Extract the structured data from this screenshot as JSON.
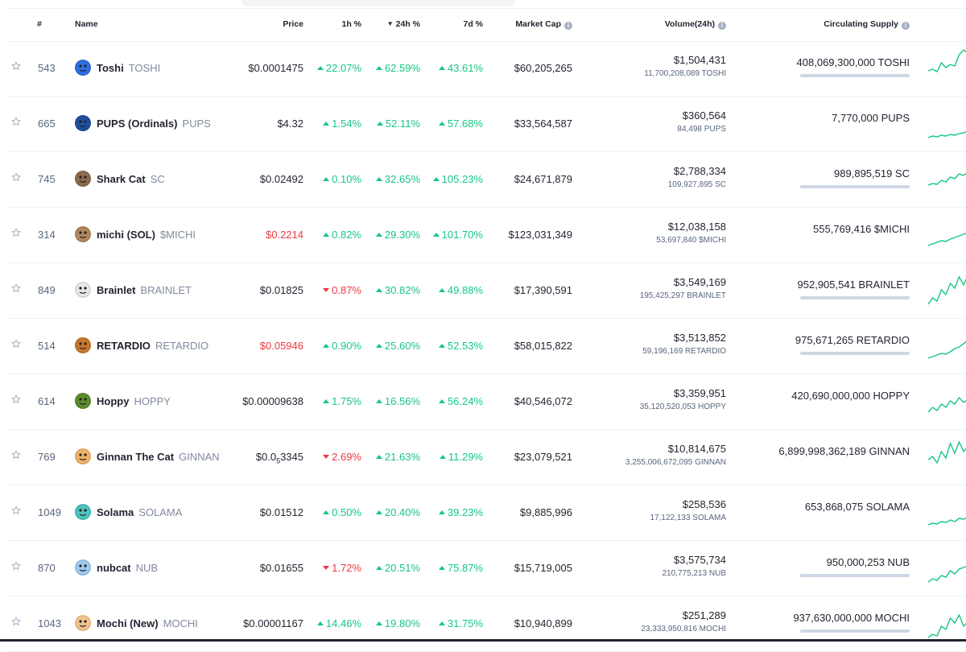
{
  "header": {
    "rank": "#",
    "name": "Name",
    "price": "Price",
    "h1": "1h %",
    "h24": "24h %",
    "d7": "7d %",
    "market_cap": "Market Cap",
    "volume": "Volume(24h)",
    "supply": "Circulating Supply"
  },
  "colors": {
    "up": "#16c784",
    "down": "#ea3943"
  },
  "rows": [
    {
      "rank": "543",
      "name": "Toshi",
      "symbol": "TOSHI",
      "price": "$0.0001475",
      "price_red": false,
      "h1": "22.07%",
      "h1_dir": "up",
      "h24": "62.59%",
      "h24_dir": "up",
      "d7": "43.61%",
      "d7_dir": "up",
      "mcap": "$60,205,265",
      "volume": "$1,504,431",
      "volume_sub": "11,700,208,089 TOSHI",
      "supply": "408,069,300,000 TOSHI",
      "supply_bar": true,
      "icon": "toshi-icon",
      "icon_color": "#2f6fe0"
    },
    {
      "rank": "665",
      "name": "PUPS (Ordinals)",
      "symbol": "PUPS",
      "price": "$4.32",
      "price_red": false,
      "h1": "1.54%",
      "h1_dir": "up",
      "h24": "52.11%",
      "h24_dir": "up",
      "d7": "57.68%",
      "d7_dir": "up",
      "mcap": "$33,564,587",
      "volume": "$360,564",
      "volume_sub": "84,498 PUPS",
      "supply": "7,770,000 PUPS",
      "supply_bar": false,
      "icon": "pups-icon",
      "icon_color": "#1d4f9c"
    },
    {
      "rank": "745",
      "name": "Shark Cat",
      "symbol": "SC",
      "price": "$0.02492",
      "price_red": false,
      "h1": "0.10%",
      "h1_dir": "up",
      "h24": "32.65%",
      "h24_dir": "up",
      "d7": "105.23%",
      "d7_dir": "up",
      "mcap": "$24,671,879",
      "volume": "$2,788,334",
      "volume_sub": "109,927,895 SC",
      "supply": "989,895,519 SC",
      "supply_bar": true,
      "icon": "shark-cat-icon",
      "icon_color": "#8c6b4f"
    },
    {
      "rank": "314",
      "name": "michi (SOL)",
      "symbol": "$MICHI",
      "price": "$0.2214",
      "price_red": true,
      "h1": "0.82%",
      "h1_dir": "up",
      "h24": "29.30%",
      "h24_dir": "up",
      "d7": "101.70%",
      "d7_dir": "up",
      "mcap": "$123,031,349",
      "volume": "$12,038,158",
      "volume_sub": "53,697,840 $MICHI",
      "supply": "555,769,416 $MICHI",
      "supply_bar": false,
      "icon": "michi-icon",
      "icon_color": "#b08860"
    },
    {
      "rank": "849",
      "name": "Brainlet",
      "symbol": "BRAINLET",
      "price": "$0.01825",
      "price_red": false,
      "h1": "0.87%",
      "h1_dir": "down",
      "h24": "30.82%",
      "h24_dir": "up",
      "d7": "49.88%",
      "d7_dir": "up",
      "mcap": "$17,390,591",
      "volume": "$3,549,169",
      "volume_sub": "195,425,297 BRAINLET",
      "supply": "952,905,541 BRAINLET",
      "supply_bar": true,
      "icon": "brainlet-icon",
      "icon_color": "#e8e8e8"
    },
    {
      "rank": "514",
      "name": "RETARDIO",
      "symbol": "RETARDIO",
      "price": "$0.05946",
      "price_red": true,
      "h1": "0.90%",
      "h1_dir": "up",
      "h24": "25.60%",
      "h24_dir": "up",
      "d7": "52.53%",
      "d7_dir": "up",
      "mcap": "$58,015,822",
      "volume": "$3,513,852",
      "volume_sub": "59,196,169 RETARDIO",
      "supply": "975,671,265 RETARDIO",
      "supply_bar": true,
      "icon": "retardio-icon",
      "icon_color": "#c7782c"
    },
    {
      "rank": "614",
      "name": "Hoppy",
      "symbol": "HOPPY",
      "price": "$0.00009638",
      "price_red": false,
      "h1": "1.75%",
      "h1_dir": "up",
      "h24": "16.56%",
      "h24_dir": "up",
      "d7": "56.24%",
      "d7_dir": "up",
      "mcap": "$40,546,072",
      "volume": "$3,359,951",
      "volume_sub": "35,120,520,053 HOPPY",
      "supply": "420,690,000,000 HOPPY",
      "supply_bar": false,
      "icon": "hoppy-icon",
      "icon_color": "#5b8c2e"
    },
    {
      "rank": "769",
      "name": "Ginnan The Cat",
      "symbol": "GINNAN",
      "price_pre": "$0.0",
      "price_sub": "5",
      "price_post": "3345",
      "price_red": false,
      "h1": "2.69%",
      "h1_dir": "down",
      "h24": "21.63%",
      "h24_dir": "up",
      "d7": "11.29%",
      "d7_dir": "up",
      "mcap": "$23,079,521",
      "volume": "$10,814,675",
      "volume_sub": "3,255,006,672,095 GINNAN",
      "supply": "6,899,998,362,189 GINNAN",
      "supply_bar": false,
      "icon": "ginnan-icon",
      "icon_color": "#f0b26b"
    },
    {
      "rank": "1049",
      "name": "Solama",
      "symbol": "SOLAMA",
      "price": "$0.01512",
      "price_red": false,
      "h1": "0.50%",
      "h1_dir": "up",
      "h24": "20.40%",
      "h24_dir": "up",
      "d7": "39.23%",
      "d7_dir": "up",
      "mcap": "$9,885,996",
      "volume": "$258,536",
      "volume_sub": "17,122,133 SOLAMA",
      "supply": "653,868,075 SOLAMA",
      "supply_bar": false,
      "icon": "solama-icon",
      "icon_color": "#4fc3c0"
    },
    {
      "rank": "870",
      "name": "nubcat",
      "symbol": "NUB",
      "price": "$0.01655",
      "price_red": false,
      "h1": "1.72%",
      "h1_dir": "down",
      "h24": "20.51%",
      "h24_dir": "up",
      "d7": "75.87%",
      "d7_dir": "up",
      "mcap": "$15,719,005",
      "volume": "$3,575,734",
      "volume_sub": "210,775,213 NUB",
      "supply": "950,000,253 NUB",
      "supply_bar": true,
      "icon": "nubcat-icon",
      "icon_color": "#9ec9f0"
    },
    {
      "rank": "1043",
      "name": "Mochi (New)",
      "symbol": "MOCHI",
      "price": "$0.00001167",
      "price_red": false,
      "h1": "14.46%",
      "h1_dir": "up",
      "h24": "19.80%",
      "h24_dir": "up",
      "d7": "31.75%",
      "d7_dir": "up",
      "mcap": "$10,940,899",
      "volume": "$251,289",
      "volume_sub": "23,333,950,816 MOCHI",
      "supply": "937,630,000,000 MOCHI",
      "supply_bar": true,
      "icon": "mochi-icon",
      "icon_color": "#f2c48d"
    }
  ]
}
